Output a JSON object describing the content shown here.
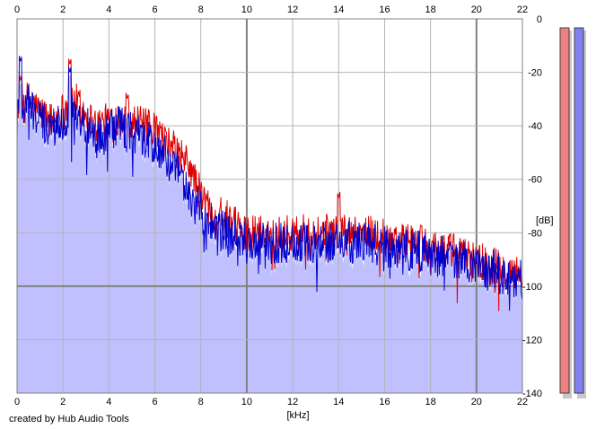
{
  "chart_data": {
    "type": "area",
    "title": "",
    "xlabel": "[kHz]",
    "ylabel": "[dB]",
    "xlim": [
      0,
      22
    ],
    "ylim": [
      -140,
      0
    ],
    "x_ticks": [
      "0",
      "2",
      "4",
      "6",
      "8",
      "10",
      "12",
      "14",
      "16",
      "18",
      "20",
      "22"
    ],
    "y_ticks": [
      "0",
      "-20",
      "-40",
      "-60",
      "-80",
      "-100",
      "-120",
      "-140"
    ],
    "grid": true,
    "colors": {
      "series_red": "#dd0000",
      "series_blue": "#0000cc",
      "fill": "#c0c0ff",
      "grid_minor": "#b4b4b4",
      "grid_major": "#808080",
      "meter_red": "#f08080",
      "meter_blue": "#8080f0"
    },
    "series": [
      {
        "color": "red",
        "x": [
          0,
          0.5,
          1,
          1.5,
          2,
          2.5,
          3,
          3.5,
          4,
          4.5,
          5,
          5.5,
          6,
          6.5,
          7,
          7.5,
          8,
          8.5,
          9,
          9.5,
          10,
          11,
          12,
          13,
          14,
          15,
          16,
          17,
          18,
          19,
          20,
          21,
          22
        ],
        "values": [
          -32,
          -30,
          -35,
          -38,
          -34,
          -30,
          -36,
          -40,
          -38,
          -37,
          -38,
          -40,
          -42,
          -46,
          -50,
          -55,
          -66,
          -72,
          -74,
          -77,
          -80,
          -80,
          -80,
          -80,
          -79,
          -80,
          -81,
          -83,
          -85,
          -87,
          -90,
          -93,
          -96
        ],
        "peaks": [
          {
            "x": 0.15,
            "y": -23
          },
          {
            "x": 2.3,
            "y": -17
          },
          {
            "x": 4.8,
            "y": -30
          },
          {
            "x": 14,
            "y": -67
          }
        ]
      },
      {
        "color": "blue",
        "x": [
          0,
          0.5,
          1,
          1.5,
          2,
          2.5,
          3,
          3.5,
          4,
          4.5,
          5,
          5.5,
          6,
          6.5,
          7,
          7.5,
          8,
          8.5,
          9,
          9.5,
          10,
          11,
          12,
          13,
          14,
          15,
          16,
          17,
          18,
          19,
          20,
          21,
          22
        ],
        "values": [
          -35,
          -32,
          -38,
          -42,
          -37,
          -33,
          -40,
          -45,
          -42,
          -40,
          -42,
          -45,
          -48,
          -52,
          -58,
          -66,
          -72,
          -77,
          -80,
          -82,
          -84,
          -84,
          -84,
          -84,
          -83,
          -84,
          -85,
          -86,
          -88,
          -90,
          -93,
          -95,
          -98
        ],
        "peaks": [
          {
            "x": 0.15,
            "y": -16
          },
          {
            "x": 2.3,
            "y": -20
          }
        ]
      }
    ],
    "level_meters": [
      {
        "channel": "red",
        "level_db": 0
      },
      {
        "channel": "blue",
        "level_db": 0
      }
    ]
  },
  "footer": {
    "credit": "created by Hub Audio Tools"
  }
}
